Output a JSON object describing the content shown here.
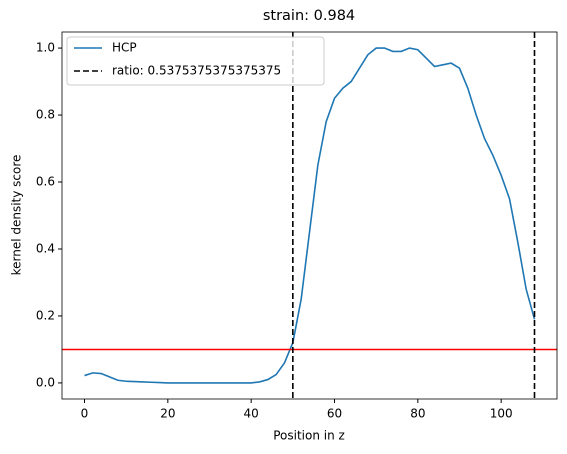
{
  "chart_data": {
    "type": "line",
    "title": "strain: 0.984",
    "x_label": "Position in z",
    "y_label": "kernel density score",
    "x": [
      0,
      2,
      4,
      6,
      8,
      10,
      12,
      14,
      16,
      18,
      20,
      25,
      30,
      35,
      40,
      42,
      44,
      46,
      48,
      50,
      52,
      54,
      56,
      58,
      60,
      62,
      64,
      66,
      68,
      70,
      72,
      74,
      76,
      78,
      80,
      82,
      84,
      86,
      88,
      90,
      92,
      94,
      96,
      98,
      100,
      102,
      104,
      106,
      108
    ],
    "series": [
      {
        "name": "HCP",
        "color": "#1f77b4",
        "values": [
          0.022,
          0.03,
          0.028,
          0.018,
          0.008,
          0.005,
          0.004,
          0.003,
          0.002,
          0.001,
          0.0,
          0.0,
          0.0,
          0.0,
          0.0,
          0.003,
          0.01,
          0.025,
          0.06,
          0.12,
          0.25,
          0.45,
          0.65,
          0.78,
          0.85,
          0.88,
          0.9,
          0.94,
          0.98,
          1.0,
          1.0,
          0.99,
          0.99,
          1.0,
          0.995,
          0.97,
          0.945,
          0.95,
          0.955,
          0.94,
          0.88,
          0.8,
          0.73,
          0.68,
          0.62,
          0.55,
          0.42,
          0.28,
          0.19
        ]
      }
    ],
    "vlines": {
      "name": "ratio: 0.5375375375375375",
      "color": "#000000",
      "x": [
        50,
        108
      ]
    },
    "hlines": {
      "color": "#ff0000",
      "y": [
        0.1
      ]
    },
    "xlim": [
      -5.4,
      113.4
    ],
    "xticks": [
      0,
      20,
      40,
      60,
      80,
      100
    ],
    "ylim": [
      -0.048,
      1.048
    ],
    "yticks": [
      {
        "value": 0,
        "label": "0.0"
      },
      0.2,
      0.4,
      0.6,
      0.8,
      {
        "value": 1,
        "label": "1.0"
      }
    ],
    "legend": "upper left"
  }
}
